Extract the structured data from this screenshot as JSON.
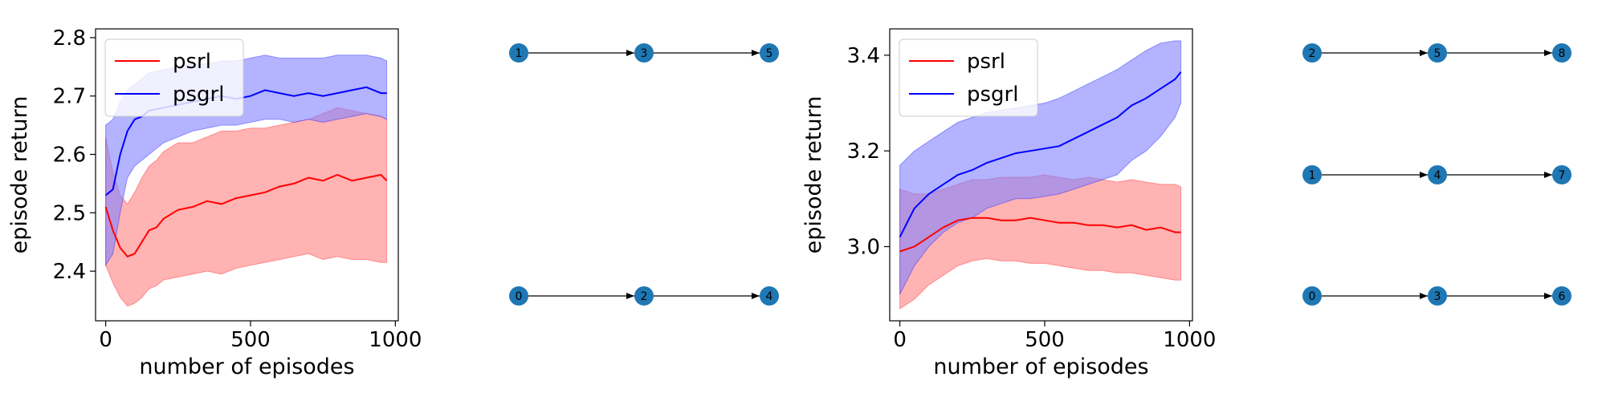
{
  "charts": [
    {
      "type": "line",
      "xlabel": "number of episodes",
      "ylabel": "episode return",
      "xlim": [
        -35,
        1010
      ],
      "ylim": [
        2.315,
        2.815
      ],
      "xticks": [
        0,
        500,
        1000
      ],
      "yticks": [
        2.4,
        2.5,
        2.6,
        2.7,
        2.8
      ],
      "grid": false,
      "legend": "top-left",
      "series": [
        {
          "name": "psrl",
          "color": "#ff0000",
          "band_color": "#ff8080",
          "points": [
            [
              0,
              2.51,
              2.41,
              2.63
            ],
            [
              25,
              2.47,
              2.38,
              2.57
            ],
            [
              50,
              2.44,
              2.355,
              2.53
            ],
            [
              75,
              2.425,
              2.34,
              2.515
            ],
            [
              100,
              2.43,
              2.345,
              2.535
            ],
            [
              125,
              2.45,
              2.355,
              2.56
            ],
            [
              150,
              2.47,
              2.37,
              2.58
            ],
            [
              175,
              2.475,
              2.375,
              2.59
            ],
            [
              200,
              2.49,
              2.385,
              2.605
            ],
            [
              250,
              2.505,
              2.39,
              2.62
            ],
            [
              300,
              2.51,
              2.395,
              2.62
            ],
            [
              350,
              2.52,
              2.4,
              2.63
            ],
            [
              400,
              2.515,
              2.395,
              2.64
            ],
            [
              450,
              2.525,
              2.405,
              2.64
            ],
            [
              500,
              2.53,
              2.41,
              2.645
            ],
            [
              550,
              2.535,
              2.415,
              2.645
            ],
            [
              600,
              2.545,
              2.42,
              2.65
            ],
            [
              650,
              2.55,
              2.425,
              2.655
            ],
            [
              700,
              2.56,
              2.43,
              2.66
            ],
            [
              750,
              2.555,
              2.42,
              2.67
            ],
            [
              800,
              2.565,
              2.425,
              2.68
            ],
            [
              850,
              2.555,
              2.42,
              2.675
            ],
            [
              900,
              2.56,
              2.42,
              2.67
            ],
            [
              950,
              2.565,
              2.415,
              2.665
            ],
            [
              970,
              2.555,
              2.415,
              2.66
            ]
          ]
        },
        {
          "name": "psgrl",
          "color": "#0000ff",
          "band_color": "#8080ff",
          "points": [
            [
              0,
              2.53,
              2.41,
              2.65
            ],
            [
              25,
              2.54,
              2.43,
              2.66
            ],
            [
              50,
              2.6,
              2.5,
              2.69
            ],
            [
              75,
              2.64,
              2.56,
              2.71
            ],
            [
              100,
              2.66,
              2.58,
              2.72
            ],
            [
              125,
              2.665,
              2.59,
              2.73
            ],
            [
              150,
              2.675,
              2.6,
              2.74
            ],
            [
              200,
              2.68,
              2.62,
              2.745
            ],
            [
              250,
              2.685,
              2.63,
              2.75
            ],
            [
              300,
              2.69,
              2.64,
              2.755
            ],
            [
              350,
              2.695,
              2.645,
              2.755
            ],
            [
              400,
              2.7,
              2.65,
              2.76
            ],
            [
              450,
              2.695,
              2.65,
              2.76
            ],
            [
              500,
              2.7,
              2.655,
              2.765
            ],
            [
              550,
              2.71,
              2.66,
              2.77
            ],
            [
              600,
              2.705,
              2.66,
              2.765
            ],
            [
              650,
              2.7,
              2.655,
              2.765
            ],
            [
              700,
              2.705,
              2.66,
              2.765
            ],
            [
              750,
              2.7,
              2.655,
              2.765
            ],
            [
              800,
              2.705,
              2.66,
              2.77
            ],
            [
              850,
              2.71,
              2.665,
              2.77
            ],
            [
              900,
              2.715,
              2.67,
              2.77
            ],
            [
              950,
              2.705,
              2.665,
              2.765
            ],
            [
              970,
              2.705,
              2.66,
              2.76
            ]
          ]
        }
      ]
    },
    {
      "type": "line",
      "xlabel": "number of episodes",
      "ylabel": "episode return",
      "xlim": [
        -35,
        1010
      ],
      "ylim": [
        2.845,
        3.455
      ],
      "xticks": [
        0,
        500,
        1000
      ],
      "yticks": [
        3.0,
        3.2,
        3.4
      ],
      "grid": false,
      "legend": "top-left",
      "series": [
        {
          "name": "psrl",
          "color": "#ff0000",
          "band_color": "#ff8080",
          "points": [
            [
              0,
              2.99,
              2.87,
              3.12
            ],
            [
              50,
              3.0,
              2.89,
              3.11
            ],
            [
              100,
              3.02,
              2.92,
              3.11
            ],
            [
              150,
              3.04,
              2.94,
              3.12
            ],
            [
              200,
              3.055,
              2.96,
              3.13
            ],
            [
              250,
              3.06,
              2.97,
              3.14
            ],
            [
              300,
              3.06,
              2.975,
              3.14
            ],
            [
              350,
              3.055,
              2.97,
              3.145
            ],
            [
              400,
              3.055,
              2.97,
              3.145
            ],
            [
              450,
              3.06,
              2.965,
              3.145
            ],
            [
              500,
              3.055,
              2.965,
              3.15
            ],
            [
              550,
              3.05,
              2.96,
              3.145
            ],
            [
              600,
              3.05,
              2.955,
              3.14
            ],
            [
              650,
              3.045,
              2.95,
              3.145
            ],
            [
              700,
              3.045,
              2.95,
              3.14
            ],
            [
              750,
              3.04,
              2.945,
              3.135
            ],
            [
              800,
              3.045,
              2.945,
              3.14
            ],
            [
              850,
              3.035,
              2.94,
              3.135
            ],
            [
              900,
              3.04,
              2.935,
              3.13
            ],
            [
              950,
              3.03,
              2.93,
              3.13
            ],
            [
              970,
              3.03,
              2.93,
              3.125
            ]
          ]
        },
        {
          "name": "psgrl",
          "color": "#0000ff",
          "band_color": "#8080ff",
          "points": [
            [
              0,
              3.02,
              2.9,
              3.17
            ],
            [
              50,
              3.08,
              2.96,
              3.2
            ],
            [
              100,
              3.11,
              3.0,
              3.22
            ],
            [
              150,
              3.13,
              3.03,
              3.24
            ],
            [
              200,
              3.15,
              3.05,
              3.26
            ],
            [
              250,
              3.16,
              3.06,
              3.27
            ],
            [
              300,
              3.175,
              3.08,
              3.28
            ],
            [
              350,
              3.185,
              3.09,
              3.285
            ],
            [
              400,
              3.195,
              3.1,
              3.29
            ],
            [
              450,
              3.2,
              3.1,
              3.295
            ],
            [
              500,
              3.205,
              3.105,
              3.3
            ],
            [
              550,
              3.21,
              3.11,
              3.31
            ],
            [
              600,
              3.225,
              3.12,
              3.325
            ],
            [
              650,
              3.24,
              3.13,
              3.34
            ],
            [
              700,
              3.255,
              3.14,
              3.355
            ],
            [
              750,
              3.27,
              3.15,
              3.37
            ],
            [
              800,
              3.295,
              3.18,
              3.39
            ],
            [
              850,
              3.31,
              3.2,
              3.41
            ],
            [
              900,
              3.33,
              3.23,
              3.425
            ],
            [
              950,
              3.35,
              3.27,
              3.43
            ],
            [
              970,
              3.365,
              3.3,
              3.43
            ]
          ]
        }
      ]
    }
  ],
  "graphs": [
    {
      "node_color": "#1f77b4",
      "nodes": [
        {
          "id": "n1",
          "label": "1",
          "col": 0,
          "row": 0
        },
        {
          "id": "n3",
          "label": "3",
          "col": 1,
          "row": 0
        },
        {
          "id": "n5",
          "label": "5",
          "col": 2,
          "row": 0
        },
        {
          "id": "n0",
          "label": "0",
          "col": 0,
          "row": 2
        },
        {
          "id": "n2",
          "label": "2",
          "col": 1,
          "row": 2
        },
        {
          "id": "n4",
          "label": "4",
          "col": 2,
          "row": 2
        }
      ],
      "edges": [
        [
          "n1",
          "n3"
        ],
        [
          "n3",
          "n5"
        ],
        [
          "n0",
          "n2"
        ],
        [
          "n2",
          "n4"
        ]
      ]
    },
    {
      "node_color": "#1f77b4",
      "nodes": [
        {
          "id": "n2",
          "label": "2",
          "col": 0,
          "row": 0
        },
        {
          "id": "n5",
          "label": "5",
          "col": 1,
          "row": 0
        },
        {
          "id": "n8",
          "label": "8",
          "col": 2,
          "row": 0
        },
        {
          "id": "n1",
          "label": "1",
          "col": 0,
          "row": 1
        },
        {
          "id": "n4",
          "label": "4",
          "col": 1,
          "row": 1
        },
        {
          "id": "n7",
          "label": "7",
          "col": 2,
          "row": 1
        },
        {
          "id": "n0",
          "label": "0",
          "col": 0,
          "row": 2
        },
        {
          "id": "n3",
          "label": "3",
          "col": 1,
          "row": 2
        },
        {
          "id": "n6",
          "label": "6",
          "col": 2,
          "row": 2
        }
      ],
      "edges": [
        [
          "n2",
          "n5"
        ],
        [
          "n5",
          "n8"
        ],
        [
          "n1",
          "n4"
        ],
        [
          "n4",
          "n7"
        ],
        [
          "n0",
          "n3"
        ],
        [
          "n3",
          "n6"
        ]
      ]
    }
  ]
}
